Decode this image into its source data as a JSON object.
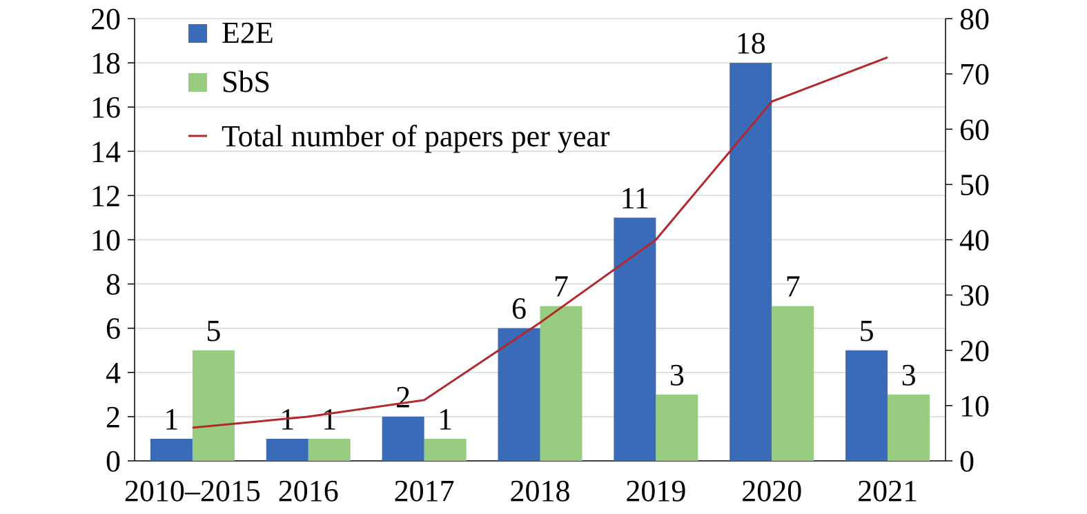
{
  "chart_data": {
    "type": "bar",
    "title": "",
    "categories": [
      "2010–2015",
      "2016",
      "2017",
      "2018",
      "2019",
      "2020",
      "2021"
    ],
    "series": [
      {
        "name": "E2E",
        "axis": "left",
        "kind": "bar",
        "color": "#3A6BB9",
        "values": [
          1,
          1,
          2,
          6,
          11,
          18,
          5
        ]
      },
      {
        "name": "SbS",
        "axis": "left",
        "kind": "bar",
        "color": "#98CD81",
        "values": [
          5,
          1,
          1,
          7,
          3,
          7,
          3
        ]
      },
      {
        "name": "Total number of papers per year",
        "axis": "right",
        "kind": "line",
        "color": "#B3282E",
        "values": [
          6,
          8,
          11,
          25,
          40,
          65,
          73
        ]
      }
    ],
    "ylim": [
      0,
      20
    ],
    "yticks": [
      0,
      2,
      4,
      6,
      8,
      10,
      12,
      14,
      16,
      18,
      20
    ],
    "y2lim": [
      0,
      80
    ],
    "y2ticks": [
      0,
      10,
      20,
      30,
      40,
      50,
      60,
      70,
      80
    ],
    "xlabel": "",
    "ylabel": "",
    "y2label": "",
    "grid": true,
    "legend_position": "top-left"
  }
}
